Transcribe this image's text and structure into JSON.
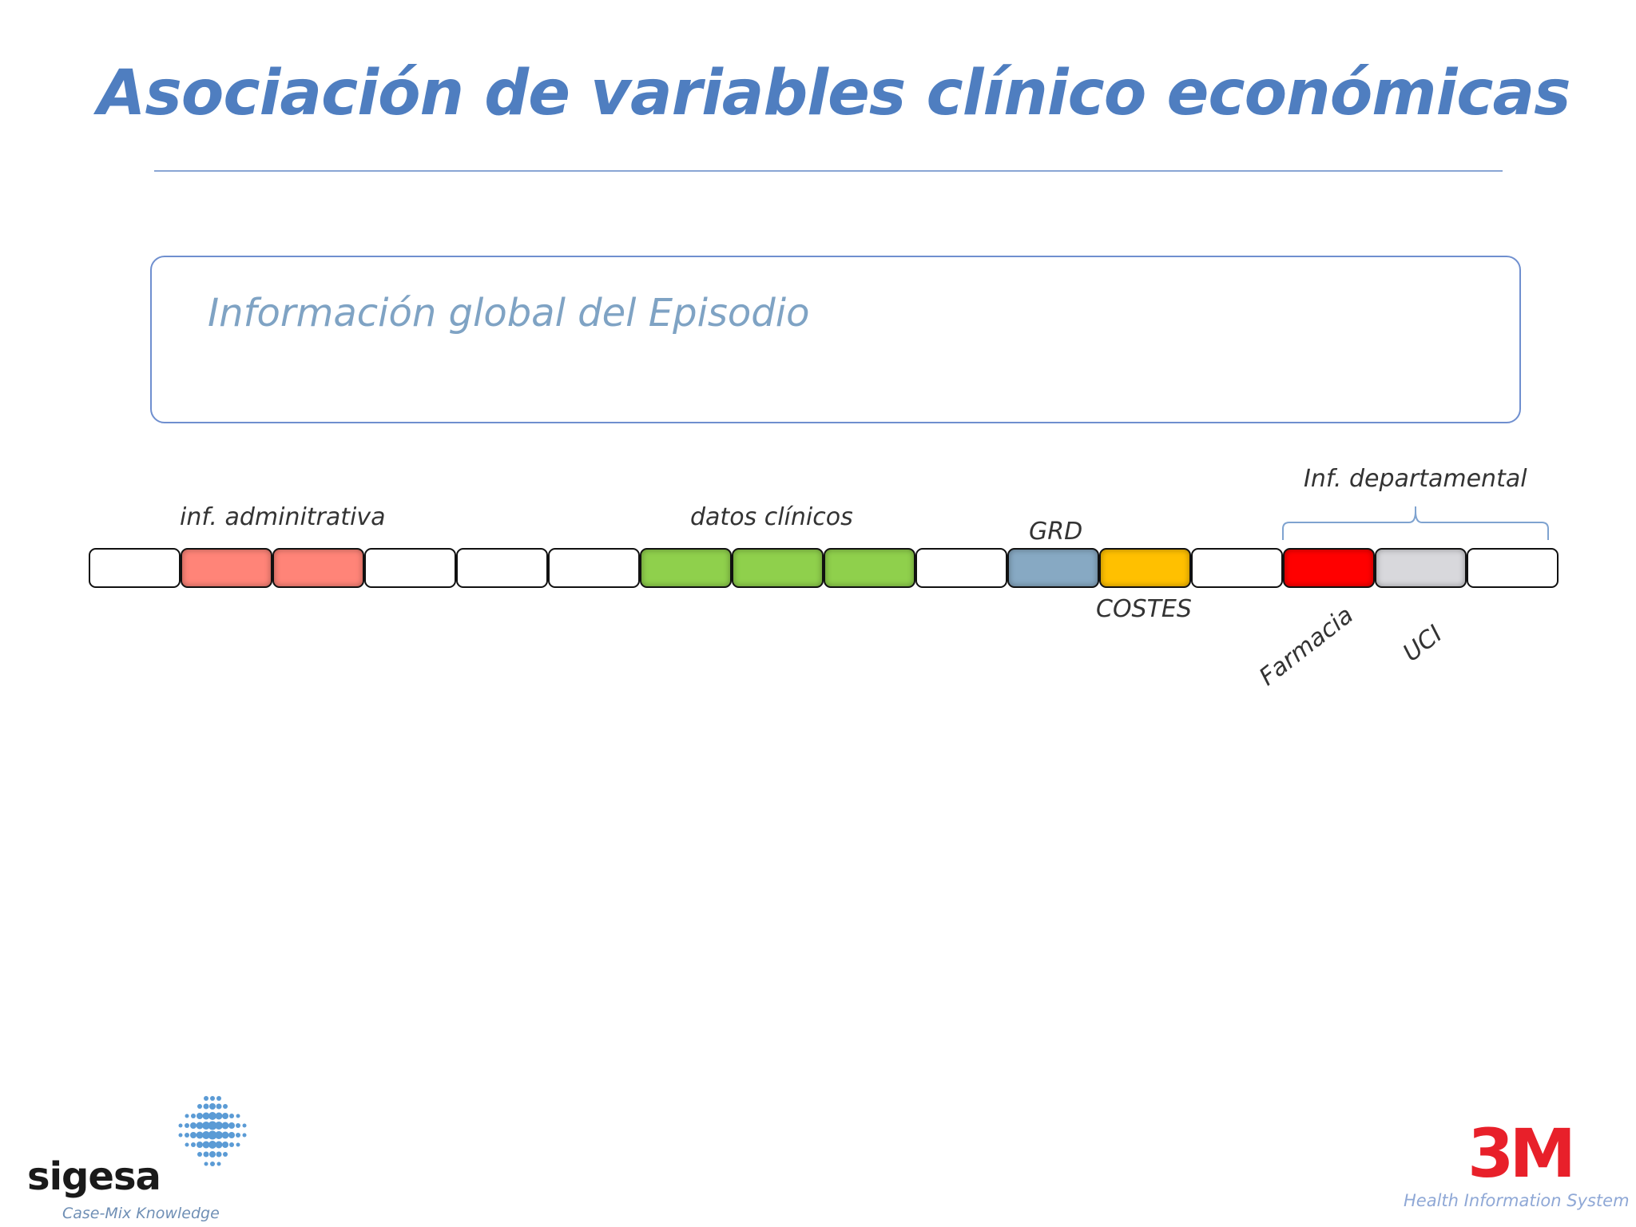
{
  "title": "Asociación de variables clínico económicas",
  "episode_box": {
    "label": "Información global del Episodio"
  },
  "strip": {
    "cells": [
      {
        "id": "1",
        "color": "#ffffff"
      },
      {
        "id": "2",
        "color": "#ff8478"
      },
      {
        "id": "3",
        "color": "#ff8478"
      },
      {
        "id": "4",
        "color": "#ffffff"
      },
      {
        "id": "5",
        "color": "#ffffff"
      },
      {
        "id": "6",
        "color": "#ffffff"
      },
      {
        "id": "7",
        "color": "#8fd04c"
      },
      {
        "id": "8",
        "color": "#8fd04c"
      },
      {
        "id": "9",
        "color": "#8fd04c"
      },
      {
        "id": "10",
        "color": "#ffffff"
      },
      {
        "id": "11",
        "color": "#87a9c3"
      },
      {
        "id": "12",
        "color": "#ffc000"
      },
      {
        "id": "13",
        "color": "#ffffff"
      },
      {
        "id": "14",
        "color": "#ff0000"
      },
      {
        "id": "15",
        "color": "#d8d8dc"
      },
      {
        "id": "16",
        "color": "#ffffff"
      }
    ]
  },
  "labels": {
    "administrativa": "inf. adminitrativa",
    "clinicos": "datos clínicos",
    "grd": "GRD",
    "costes": "COSTES",
    "departamental": "Inf. departamental",
    "farmacia": "Farmacia",
    "uci": "UCI"
  },
  "logos": {
    "sigesa": {
      "name": "sigesa",
      "tagline": "Case-Mix Knowledge",
      "accent": "#5b9bd5"
    },
    "three_m": {
      "mark": "3M",
      "tagline": "Health Information System",
      "accent": "#e8202a"
    }
  }
}
